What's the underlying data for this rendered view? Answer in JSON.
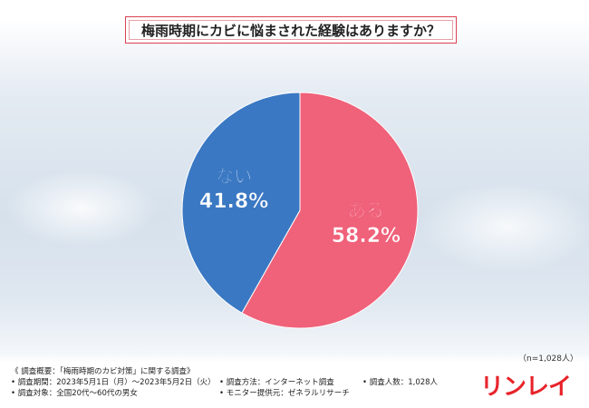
{
  "title": "梅雨時期にカビに悩まされた経験はありますか？",
  "colors": {
    "accent": "#d94150",
    "yes": "#f0617a",
    "no": "#3a78c3",
    "logo": "#e8232a"
  },
  "chart_data": {
    "type": "pie",
    "slices": [
      {
        "label": "ある",
        "value": 58.2,
        "display": "58.2%",
        "color": "#f0617a"
      },
      {
        "label": "ない",
        "value": 41.8,
        "display": "41.8%",
        "color": "#3a78c3"
      }
    ],
    "start": "12 o'clock",
    "direction": "clockwise"
  },
  "sample_size": "（n=1,028人）",
  "footer": {
    "summary": "《 調査概要：「梅雨時期のカビ対策」に関する調査》",
    "period": "• 調査期間：2023年5月1日（月）～2023年5月2日（火）",
    "target": "• 調査対象：全国20代～60代の男女",
    "method": "• 調査方法：インターネット調査",
    "provider": "• モニター提供元：ゼネラルリサーチ",
    "count": "• 調査人数：1,028人"
  },
  "logo_text": "リンレイ"
}
